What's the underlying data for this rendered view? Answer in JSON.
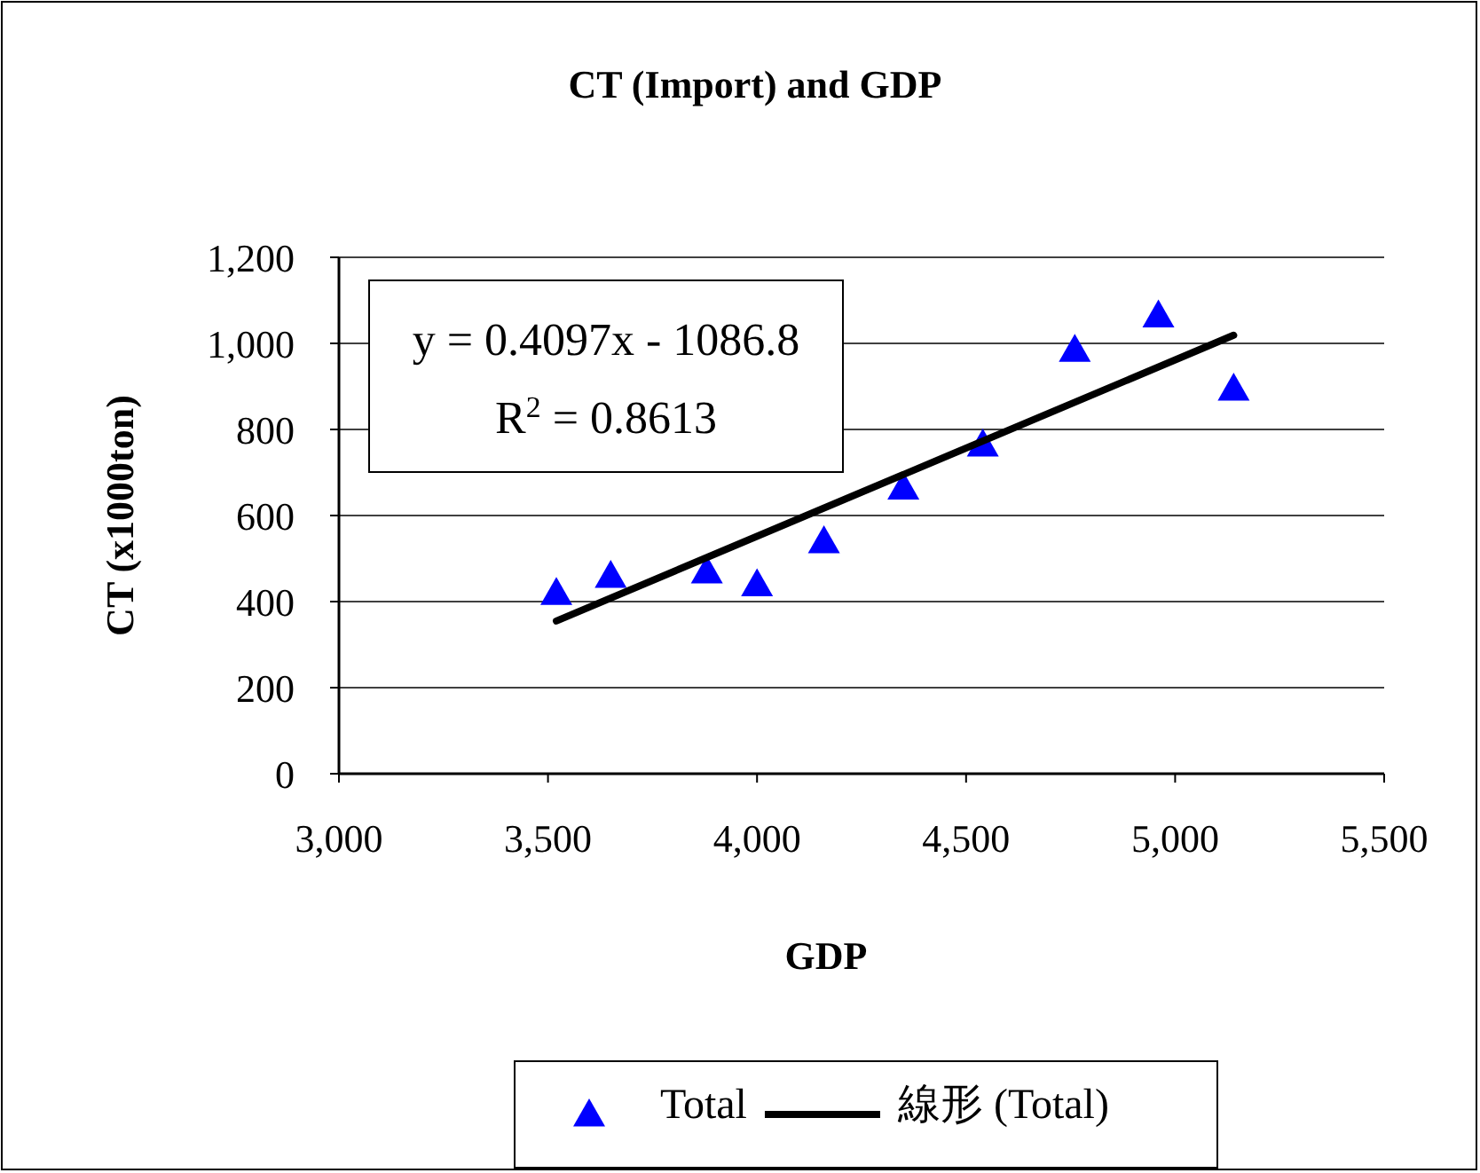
{
  "chart_data": {
    "type": "scatter",
    "title": "CT (Import) and GDP",
    "xlabel": "GDP",
    "ylabel": "CT (x1000ton)",
    "annotations": [
      "y = 0.4097x - 1086.8",
      "R$^{2}$ = 0.8613"
    ],
    "xlim": [
      3000,
      5500
    ],
    "xticks": [
      {
        "value": 3000,
        "label": "3,000"
      },
      {
        "value": 3500,
        "label": "3,500"
      },
      {
        "value": 4000,
        "label": "4,000"
      },
      {
        "value": 4500,
        "label": "4,500"
      },
      {
        "value": 5000,
        "label": "5,000"
      },
      {
        "value": 5500,
        "label": "5,500"
      }
    ],
    "ylim": [
      0,
      1200
    ],
    "yticks": [
      0,
      200,
      400,
      600,
      800,
      {
        "value": 1000,
        "label": "1,000"
      },
      {
        "value": 1200,
        "label": "1,200"
      }
    ],
    "grid": "y",
    "legend": "bottom",
    "series": [
      {
        "name": "Total",
        "marker": "triangle",
        "color": "#0000ff",
        "x": [
          3520,
          3650,
          3880,
          4000,
          4160,
          4350,
          4540,
          4760,
          4960,
          5140
        ],
        "values": [
          420,
          460,
          470,
          440,
          540,
          665,
          765,
          985,
          1065,
          895
        ]
      },
      {
        "name": "線形 (Total)",
        "type": "line",
        "marker": "none",
        "line_style": "solid",
        "color": "#000000",
        "x": [
          3520,
          5140
        ],
        "values": [
          355,
          1019
        ]
      }
    ]
  }
}
